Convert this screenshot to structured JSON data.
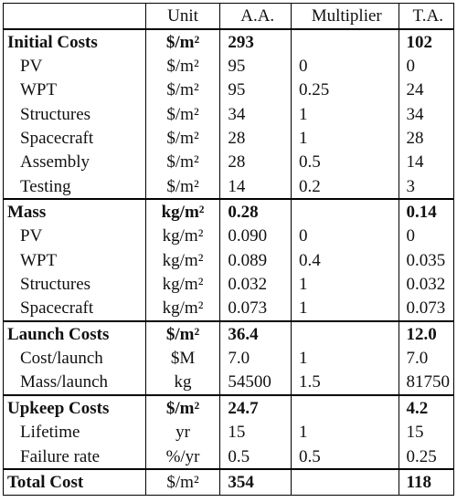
{
  "header": {
    "label": "",
    "unit": "Unit",
    "aa": "A.A.",
    "multiplier": "Multiplier",
    "ta": "T.A."
  },
  "rows": [
    {
      "type": "section",
      "label": "Initial Costs",
      "unit": "$/m²",
      "aa": "293",
      "multiplier": "",
      "ta": "102"
    },
    {
      "type": "sub",
      "label": "PV",
      "unit": "$/m²",
      "aa": "95",
      "multiplier": "0",
      "ta": "0"
    },
    {
      "type": "sub",
      "label": "WPT",
      "unit": "$/m²",
      "aa": "95",
      "multiplier": "0.25",
      "ta": "24"
    },
    {
      "type": "sub",
      "label": "Structures",
      "unit": "$/m²",
      "aa": "34",
      "multiplier": "1",
      "ta": "34"
    },
    {
      "type": "sub",
      "label": "Spacecraft",
      "unit": "$/m²",
      "aa": "28",
      "multiplier": "1",
      "ta": "28"
    },
    {
      "type": "sub",
      "label": "Assembly",
      "unit": "$/m²",
      "aa": "28",
      "multiplier": "0.5",
      "ta": "14"
    },
    {
      "type": "sub",
      "label": "Testing",
      "unit": "$/m²",
      "aa": "14",
      "multiplier": "0.2",
      "ta": "3"
    },
    {
      "type": "section",
      "label": "Mass",
      "unit": "kg/m²",
      "aa": "0.28",
      "multiplier": "",
      "ta": "0.14"
    },
    {
      "type": "sub",
      "label": "PV",
      "unit": "kg/m²",
      "aa": "0.090",
      "multiplier": "0",
      "ta": "0"
    },
    {
      "type": "sub",
      "label": "WPT",
      "unit": "kg/m²",
      "aa": "0.089",
      "multiplier": "0.4",
      "ta": "0.035"
    },
    {
      "type": "sub",
      "label": "Structures",
      "unit": "kg/m²",
      "aa": "0.032",
      "multiplier": "1",
      "ta": "0.032"
    },
    {
      "type": "sub",
      "label": "Spacecraft",
      "unit": "kg/m²",
      "aa": "0.073",
      "multiplier": "1",
      "ta": "0.073"
    },
    {
      "type": "section",
      "label": "Launch Costs",
      "unit": "$/m²",
      "aa": "36.4",
      "multiplier": "",
      "ta": "12.0"
    },
    {
      "type": "sub",
      "label": "Cost/launch",
      "unit": "$M",
      "aa": "7.0",
      "multiplier": "1",
      "ta": "7.0"
    },
    {
      "type": "sub",
      "label": "Mass/launch",
      "unit": "kg",
      "aa": "54500",
      "multiplier": "1.5",
      "ta": "81750"
    },
    {
      "type": "section",
      "label": "Upkeep Costs",
      "unit": "$/m²",
      "aa": "24.7",
      "multiplier": "",
      "ta": "4.2"
    },
    {
      "type": "sub",
      "label": "Lifetime",
      "unit": "yr",
      "aa": "15",
      "multiplier": "1",
      "ta": "15"
    },
    {
      "type": "sub",
      "label": "Failure rate",
      "unit": "%/yr",
      "aa": "0.5",
      "multiplier": "0.5",
      "ta": "0.25"
    },
    {
      "type": "total",
      "label": "Total Cost",
      "unit": "$/m²",
      "aa": "354",
      "multiplier": "",
      "ta": "118"
    }
  ]
}
